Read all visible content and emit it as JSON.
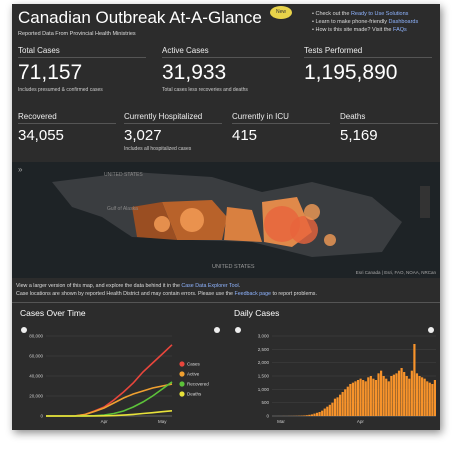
{
  "header": {
    "title": "Canadian Outbreak At-A-Glance",
    "subtitle": "Reported Data From Provincial Health Ministries",
    "badge": "New",
    "links": [
      {
        "text": "Check out the ",
        "link": "Ready to Use Solutions"
      },
      {
        "text": "Learn to make phone-friendly ",
        "link": "Dashboards"
      },
      {
        "text": "How is this site made? Visit the ",
        "link": "FAQs"
      }
    ]
  },
  "stats": [
    {
      "label": "Total Cases",
      "value": "71,157",
      "note": "Includes presumed & confirmed cases"
    },
    {
      "label": "Active Cases",
      "value": "31,933",
      "note": "Total cases less recoveries and deaths"
    },
    {
      "label": "Tests Performed",
      "value": "1,195,890"
    },
    {
      "label": "Recovered",
      "value": "34,055"
    },
    {
      "label": "Currently Hospitalized",
      "value": "3,027",
      "note": "Includes all hospitalized cases"
    },
    {
      "label": "Currently in ICU",
      "value": "415"
    },
    {
      "label": "Deaths",
      "value": "5,169"
    }
  ],
  "map": {
    "labels": [
      "UNITED STATES",
      "Gulf of Alaska",
      "UNITED STATES"
    ],
    "attribution": "Esri Canada | Esri, FAO, NOAA, NRCan"
  },
  "notes": [
    {
      "before": "View a larger version of this map, and explore the data behind it in the ",
      "link": "Case Data Explorer Tool",
      "after": "."
    },
    {
      "before": "Case locations are shown by reported Health District and may contain errors. Please use the ",
      "link": "Feedback page",
      "after": " to report problems."
    }
  ],
  "chart_data": [
    {
      "type": "line",
      "title": "Cases Over Time",
      "categories": [
        null,
        null,
        null,
        null,
        null,
        null,
        "Apr",
        null,
        null,
        null,
        null,
        null,
        "May",
        null
      ],
      "series": [
        {
          "name": "Cases",
          "color": "#e8463c",
          "values": [
            0,
            0,
            10,
            100,
            1500,
            5000,
            9000,
            16000,
            24000,
            33000,
            44000,
            53000,
            62000,
            71157
          ]
        },
        {
          "name": "Active",
          "color": "#f0a030",
          "values": [
            0,
            0,
            10,
            90,
            1400,
            4500,
            8000,
            13000,
            18000,
            22000,
            25000,
            28000,
            30000,
            31933
          ]
        },
        {
          "name": "Recovered",
          "color": "#5cc23a",
          "values": [
            0,
            0,
            0,
            0,
            50,
            300,
            1000,
            2500,
            5000,
            9000,
            14000,
            20000,
            27000,
            34055
          ]
        },
        {
          "name": "Deaths",
          "color": "#e8e23a",
          "values": [
            0,
            0,
            0,
            0,
            10,
            50,
            150,
            400,
            900,
            1600,
            2500,
            3300,
            4300,
            5169
          ]
        }
      ],
      "ylim": [
        0,
        80000
      ],
      "yticks": [
        0,
        {
          "value": 20000,
          "label": "20,000"
        },
        {
          "value": 40000,
          "label": "40,000"
        },
        {
          "value": 60000,
          "label": "60,000"
        },
        {
          "value": 80000,
          "label": "80,000"
        }
      ],
      "grid": true
    },
    {
      "type": "bar",
      "title": "Daily Cases",
      "color": "#f7932b",
      "categories": [
        null,
        null,
        null,
        "Mar",
        null,
        null,
        null,
        null,
        null,
        null,
        null,
        null,
        null,
        null,
        null,
        null,
        null,
        null,
        null,
        null,
        null,
        null,
        null,
        null,
        null,
        null,
        null,
        null,
        null,
        null,
        null,
        null,
        null,
        null,
        "Apr",
        null,
        null,
        null,
        null,
        null,
        null,
        null,
        null,
        null,
        null,
        null,
        null,
        null,
        null,
        null,
        null,
        null,
        null,
        null,
        null,
        null,
        null,
        null,
        null,
        null,
        null,
        null,
        null,
        null
      ],
      "values": [
        0,
        0,
        1,
        0,
        2,
        1,
        3,
        4,
        5,
        8,
        10,
        15,
        20,
        30,
        45,
        60,
        90,
        120,
        150,
        200,
        280,
        350,
        420,
        500,
        650,
        700,
        800,
        900,
        1000,
        1100,
        1200,
        1250,
        1300,
        1350,
        1400,
        1350,
        1300,
        1450,
        1500,
        1400,
        1350,
        1600,
        1700,
        1500,
        1400,
        1300,
        1500,
        1550,
        1600,
        1700,
        1800,
        1650,
        1500,
        1400,
        1700,
        2700,
        1600,
        1500,
        1450,
        1400,
        1300,
        1250,
        1200,
        1350
      ],
      "ylim": [
        0,
        3000
      ],
      "yticks": [
        0,
        500,
        {
          "value": 1000,
          "label": "1,000"
        },
        {
          "value": 1500,
          "label": "1,500"
        },
        {
          "value": 2000,
          "label": "2,000"
        },
        {
          "value": 2500,
          "label": "2,500"
        },
        {
          "value": 3000,
          "label": "3,000"
        }
      ],
      "grid": true
    }
  ]
}
